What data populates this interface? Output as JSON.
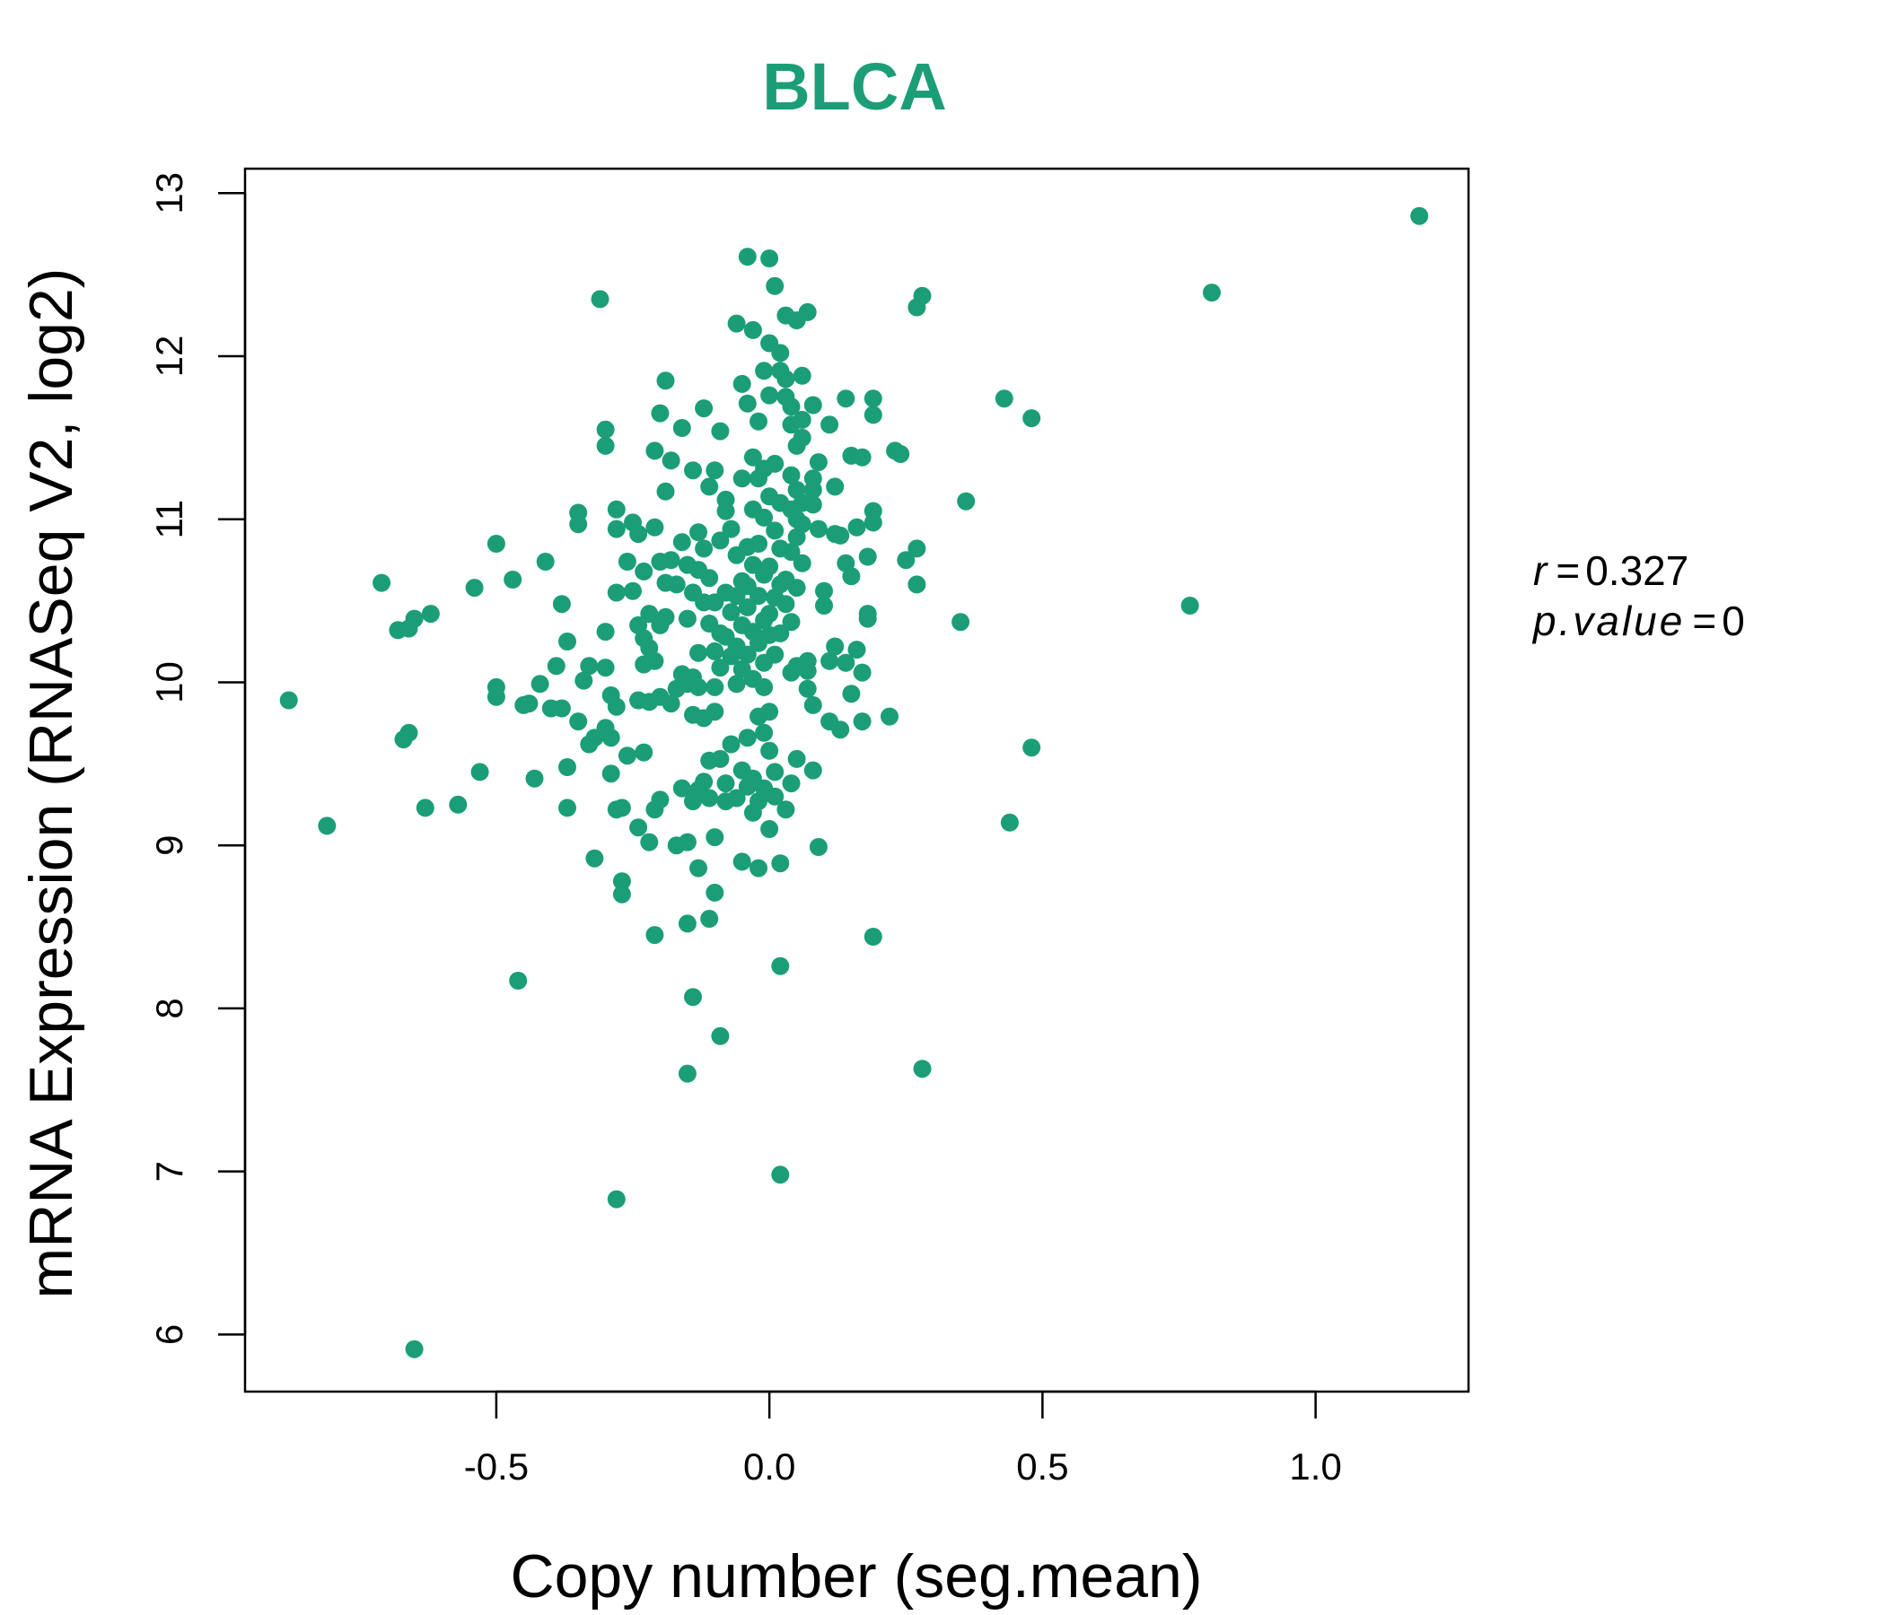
{
  "chart_data": {
    "type": "scatter",
    "title": "BLCA",
    "xlabel": "Copy number (seg.mean)",
    "ylabel": "mRNA Expression (RNASeq V2, log2)",
    "xlim": [
      -0.96,
      1.28
    ],
    "ylim": [
      5.65,
      13.15
    ],
    "xticks": [
      -0.5,
      0.0,
      0.5,
      1.0
    ],
    "xtick_labels": [
      "-0.5",
      "0.0",
      "0.5",
      "1.0"
    ],
    "yticks": [
      6,
      7,
      8,
      9,
      10,
      11,
      12,
      13
    ],
    "ytick_labels": [
      "6",
      "7",
      "8",
      "9",
      "10",
      "11",
      "12",
      "13"
    ],
    "grid": false,
    "color": "#1b9e77",
    "annotation": {
      "r_label": "r",
      "r_value": "0.327",
      "p_label": "p.value",
      "p_value": "0"
    },
    "points": [
      [
        1.19,
        12.86
      ],
      [
        0.81,
        12.39
      ],
      [
        0.77,
        10.47
      ],
      [
        0.48,
        9.6
      ],
      [
        0.48,
        11.62
      ],
      [
        0.44,
        9.14
      ],
      [
        0.43,
        11.74
      ],
      [
        0.36,
        11.11
      ],
      [
        0.35,
        10.37
      ],
      [
        0.28,
        12.37
      ],
      [
        0.27,
        12.3
      ],
      [
        0.28,
        7.63
      ],
      [
        0.27,
        10.82
      ],
      [
        0.27,
        10.6
      ],
      [
        0.25,
        10.75
      ],
      [
        0.24,
        11.4
      ],
      [
        0.23,
        11.42
      ],
      [
        0.22,
        9.79
      ],
      [
        0.19,
        8.44
      ],
      [
        0.19,
        11.74
      ],
      [
        0.19,
        11.64
      ],
      [
        0.19,
        11.05
      ],
      [
        0.19,
        10.98
      ],
      [
        0.18,
        10.42
      ],
      [
        0.18,
        10.39
      ],
      [
        0.18,
        10.77
      ],
      [
        0.17,
        10.06
      ],
      [
        0.17,
        9.76
      ],
      [
        0.17,
        11.38
      ],
      [
        0.16,
        10.95
      ],
      [
        0.16,
        10.2
      ],
      [
        0.15,
        10.65
      ],
      [
        0.15,
        9.93
      ],
      [
        0.15,
        11.39
      ],
      [
        0.14,
        11.74
      ],
      [
        0.14,
        10.73
      ],
      [
        0.14,
        10.12
      ],
      [
        0.13,
        9.71
      ],
      [
        0.13,
        10.9
      ],
      [
        0.12,
        10.22
      ],
      [
        0.12,
        11.2
      ],
      [
        0.12,
        10.91
      ],
      [
        0.11,
        11.58
      ],
      [
        0.11,
        10.13
      ],
      [
        0.11,
        9.76
      ],
      [
        0.1,
        10.47
      ],
      [
        0.1,
        10.56
      ],
      [
        0.09,
        11.35
      ],
      [
        0.09,
        10.94
      ],
      [
        0.09,
        8.99
      ],
      [
        0.08,
        11.09
      ],
      [
        0.08,
        11.18
      ],
      [
        0.08,
        11.25
      ],
      [
        0.08,
        11.7
      ],
      [
        0.08,
        9.86
      ],
      [
        0.08,
        9.46
      ],
      [
        0.07,
        12.27
      ],
      [
        0.07,
        10.07
      ],
      [
        0.07,
        10.13
      ],
      [
        0.07,
        9.96
      ],
      [
        0.06,
        11.61
      ],
      [
        0.06,
        11.5
      ],
      [
        0.06,
        11.88
      ],
      [
        0.06,
        10.97
      ],
      [
        0.06,
        11.1
      ],
      [
        0.06,
        10.73
      ],
      [
        0.05,
        10.58
      ],
      [
        0.05,
        10.89
      ],
      [
        0.05,
        10.1
      ],
      [
        0.05,
        11.0
      ],
      [
        0.05,
        11.18
      ],
      [
        0.05,
        11.45
      ],
      [
        0.05,
        12.22
      ],
      [
        0.05,
        9.53
      ],
      [
        0.04,
        10.06
      ],
      [
        0.04,
        10.37
      ],
      [
        0.04,
        11.06
      ],
      [
        0.04,
        10.8
      ],
      [
        0.04,
        11.27
      ],
      [
        0.04,
        11.58
      ],
      [
        0.04,
        11.69
      ],
      [
        0.04,
        9.38
      ],
      [
        0.03,
        10.63
      ],
      [
        0.03,
        10.48
      ],
      [
        0.03,
        11.86
      ],
      [
        0.03,
        12.25
      ],
      [
        0.03,
        11.75
      ],
      [
        0.03,
        9.22
      ],
      [
        0.02,
        10.3
      ],
      [
        0.02,
        10.6
      ],
      [
        0.02,
        11.1
      ],
      [
        0.02,
        10.82
      ],
      [
        0.02,
        8.89
      ],
      [
        0.02,
        8.26
      ],
      [
        0.02,
        6.98
      ],
      [
        0.02,
        12.02
      ],
      [
        0.02,
        11.91
      ],
      [
        0.01,
        10.52
      ],
      [
        0.01,
        10.17
      ],
      [
        0.01,
        10.93
      ],
      [
        0.01,
        11.34
      ],
      [
        0.01,
        12.43
      ],
      [
        0.01,
        9.3
      ],
      [
        0.01,
        9.45
      ],
      [
        0.0,
        10.29
      ],
      [
        0.0,
        10.42
      ],
      [
        0.0,
        10.71
      ],
      [
        0.0,
        11.14
      ],
      [
        0.0,
        11.76
      ],
      [
        0.0,
        12.08
      ],
      [
        0.0,
        9.58
      ],
      [
        0.0,
        9.82
      ],
      [
        0.0,
        9.1
      ],
      [
        0.0,
        12.6
      ],
      [
        -0.01,
        10.38
      ],
      [
        -0.01,
        10.12
      ],
      [
        -0.01,
        10.66
      ],
      [
        -0.01,
        11.01
      ],
      [
        -0.01,
        11.31
      ],
      [
        -0.01,
        11.91
      ],
      [
        -0.01,
        9.97
      ],
      [
        -0.01,
        9.69
      ],
      [
        -0.01,
        9.35
      ],
      [
        -0.02,
        10.24
      ],
      [
        -0.02,
        10.53
      ],
      [
        -0.02,
        10.85
      ],
      [
        -0.02,
        11.25
      ],
      [
        -0.02,
        11.6
      ],
      [
        -0.02,
        9.79
      ],
      [
        -0.02,
        9.27
      ],
      [
        -0.02,
        8.86
      ],
      [
        -0.03,
        10.31
      ],
      [
        -0.03,
        10.02
      ],
      [
        -0.03,
        10.72
      ],
      [
        -0.03,
        11.06
      ],
      [
        -0.03,
        11.38
      ],
      [
        -0.03,
        9.41
      ],
      [
        -0.03,
        9.2
      ],
      [
        -0.03,
        12.16
      ],
      [
        -0.04,
        10.46
      ],
      [
        -0.04,
        10.17
      ],
      [
        -0.04,
        10.59
      ],
      [
        -0.04,
        10.83
      ],
      [
        -0.04,
        11.71
      ],
      [
        -0.04,
        9.66
      ],
      [
        -0.04,
        9.36
      ],
      [
        -0.04,
        12.61
      ],
      [
        -0.05,
        10.35
      ],
      [
        -0.05,
        10.08
      ],
      [
        -0.05,
        10.62
      ],
      [
        -0.05,
        11.25
      ],
      [
        -0.05,
        11.83
      ],
      [
        -0.05,
        9.46
      ],
      [
        -0.05,
        8.9
      ],
      [
        -0.06,
        10.22
      ],
      [
        -0.06,
        10.53
      ],
      [
        -0.06,
        10.78
      ],
      [
        -0.06,
        9.99
      ],
      [
        -0.06,
        9.29
      ],
      [
        -0.06,
        12.2
      ],
      [
        -0.07,
        10.43
      ],
      [
        -0.07,
        10.16
      ],
      [
        -0.07,
        10.94
      ],
      [
        -0.07,
        9.62
      ],
      [
        -0.08,
        10.28
      ],
      [
        -0.08,
        10.55
      ],
      [
        -0.08,
        11.05
      ],
      [
        -0.08,
        9.38
      ],
      [
        -0.08,
        9.27
      ],
      [
        -0.08,
        11.12
      ],
      [
        -0.09,
        10.3
      ],
      [
        -0.09,
        10.87
      ],
      [
        -0.09,
        10.09
      ],
      [
        -0.09,
        9.53
      ],
      [
        -0.09,
        7.83
      ],
      [
        -0.09,
        11.54
      ],
      [
        -0.1,
        10.19
      ],
      [
        -0.1,
        10.49
      ],
      [
        -0.1,
        9.97
      ],
      [
        -0.1,
        9.82
      ],
      [
        -0.1,
        9.05
      ],
      [
        -0.1,
        8.71
      ],
      [
        -0.1,
        11.3
      ],
      [
        -0.11,
        10.36
      ],
      [
        -0.11,
        10.64
      ],
      [
        -0.11,
        9.52
      ],
      [
        -0.11,
        9.29
      ],
      [
        -0.11,
        8.55
      ],
      [
        -0.11,
        11.2
      ],
      [
        -0.12,
        10.82
      ],
      [
        -0.12,
        10.49
      ],
      [
        -0.12,
        9.78
      ],
      [
        -0.12,
        9.39
      ],
      [
        -0.12,
        11.68
      ],
      [
        -0.13,
        10.18
      ],
      [
        -0.13,
        10.69
      ],
      [
        -0.13,
        9.97
      ],
      [
        -0.13,
        9.34
      ],
      [
        -0.13,
        8.86
      ],
      [
        -0.13,
        10.92
      ],
      [
        -0.14,
        10.55
      ],
      [
        -0.14,
        10.03
      ],
      [
        -0.14,
        9.8
      ],
      [
        -0.14,
        9.27
      ],
      [
        -0.14,
        11.3
      ],
      [
        -0.14,
        8.07
      ],
      [
        -0.15,
        10.72
      ],
      [
        -0.15,
        10.39
      ],
      [
        -0.15,
        9.99
      ],
      [
        -0.15,
        9.02
      ],
      [
        -0.15,
        8.52
      ],
      [
        -0.15,
        7.6
      ],
      [
        -0.16,
        10.86
      ],
      [
        -0.16,
        10.05
      ],
      [
        -0.16,
        9.35
      ],
      [
        -0.16,
        11.56
      ],
      [
        -0.17,
        10.6
      ],
      [
        -0.17,
        9.96
      ],
      [
        -0.17,
        9.0
      ],
      [
        -0.18,
        10.75
      ],
      [
        -0.18,
        11.36
      ],
      [
        -0.18,
        9.87
      ],
      [
        -0.19,
        10.61
      ],
      [
        -0.19,
        10.4
      ],
      [
        -0.19,
        11.17
      ],
      [
        -0.19,
        11.85
      ],
      [
        -0.2,
        10.74
      ],
      [
        -0.2,
        10.35
      ],
      [
        -0.2,
        9.91
      ],
      [
        -0.2,
        9.28
      ],
      [
        -0.2,
        11.65
      ],
      [
        -0.21,
        10.95
      ],
      [
        -0.21,
        10.13
      ],
      [
        -0.21,
        9.22
      ],
      [
        -0.21,
        8.45
      ],
      [
        -0.21,
        11.42
      ],
      [
        -0.22,
        10.42
      ],
      [
        -0.22,
        10.21
      ],
      [
        -0.22,
        9.88
      ],
      [
        -0.22,
        9.02
      ],
      [
        -0.23,
        10.68
      ],
      [
        -0.23,
        10.11
      ],
      [
        -0.23,
        10.27
      ],
      [
        -0.23,
        9.57
      ],
      [
        -0.24,
        10.35
      ],
      [
        -0.24,
        9.89
      ],
      [
        -0.24,
        9.11
      ],
      [
        -0.24,
        10.91
      ],
      [
        -0.25,
        10.56
      ],
      [
        -0.25,
        10.98
      ],
      [
        -0.26,
        10.74
      ],
      [
        -0.26,
        9.55
      ],
      [
        -0.27,
        8.7
      ],
      [
        -0.27,
        8.78
      ],
      [
        -0.27,
        9.23
      ],
      [
        -0.28,
        10.94
      ],
      [
        -0.28,
        10.55
      ],
      [
        -0.28,
        9.85
      ],
      [
        -0.28,
        9.22
      ],
      [
        -0.28,
        11.06
      ],
      [
        -0.28,
        6.83
      ],
      [
        -0.29,
        9.92
      ],
      [
        -0.29,
        9.66
      ],
      [
        -0.29,
        9.44
      ],
      [
        -0.3,
        10.09
      ],
      [
        -0.3,
        10.31
      ],
      [
        -0.3,
        9.72
      ],
      [
        -0.3,
        11.45
      ],
      [
        -0.3,
        11.55
      ],
      [
        -0.31,
        12.35
      ],
      [
        -0.32,
        9.66
      ],
      [
        -0.32,
        8.92
      ],
      [
        -0.33,
        10.1
      ],
      [
        -0.33,
        9.62
      ],
      [
        -0.34,
        10.01
      ],
      [
        -0.35,
        9.76
      ],
      [
        -0.35,
        10.97
      ],
      [
        -0.35,
        11.04
      ],
      [
        -0.37,
        9.48
      ],
      [
        -0.37,
        9.23
      ],
      [
        -0.37,
        10.25
      ],
      [
        -0.38,
        10.48
      ],
      [
        -0.38,
        9.84
      ],
      [
        -0.39,
        10.1
      ],
      [
        -0.4,
        9.84
      ],
      [
        -0.41,
        10.74
      ],
      [
        -0.42,
        9.99
      ],
      [
        -0.43,
        9.41
      ],
      [
        -0.44,
        9.87
      ],
      [
        -0.45,
        9.86
      ],
      [
        -0.46,
        8.17
      ],
      [
        -0.47,
        10.63
      ],
      [
        -0.5,
        10.85
      ],
      [
        -0.5,
        9.91
      ],
      [
        -0.5,
        9.97
      ],
      [
        -0.53,
        9.45
      ],
      [
        -0.54,
        10.58
      ],
      [
        -0.57,
        9.25
      ],
      [
        -0.62,
        10.42
      ],
      [
        -0.63,
        9.23
      ],
      [
        -0.65,
        10.39
      ],
      [
        -0.65,
        5.91
      ],
      [
        -0.66,
        10.33
      ],
      [
        -0.66,
        9.69
      ],
      [
        -0.67,
        9.65
      ],
      [
        -0.68,
        10.32
      ],
      [
        -0.71,
        10.61
      ],
      [
        -0.81,
        9.12
      ],
      [
        -0.88,
        9.89
      ]
    ]
  }
}
